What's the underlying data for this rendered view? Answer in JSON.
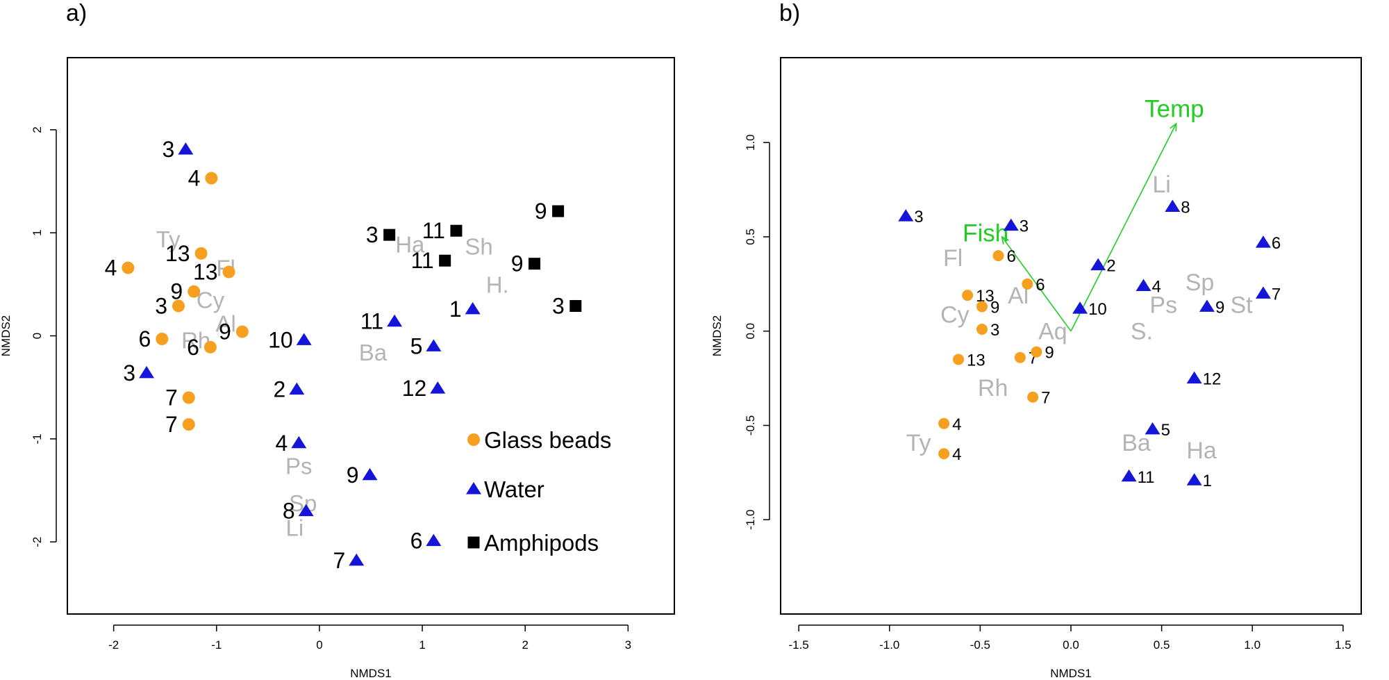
{
  "colors": {
    "glass_beads": "#f7a01f",
    "water": "#1515d9",
    "amphipods": "#000000",
    "species": "#b4b4b4",
    "vector": "#22cc22"
  },
  "chart_data": [
    {
      "type": "scatter",
      "panel_label": "a)",
      "xlabel": "NMDS1",
      "ylabel": "NMDS2",
      "xlim": [
        -2.45,
        3.45
      ],
      "ylim": [
        -2.7,
        2.7
      ],
      "xticks": [
        -2,
        -1,
        0,
        1,
        2,
        3
      ],
      "yticks": [
        -2,
        -1,
        0,
        1,
        2
      ],
      "legend": {
        "position": "bottom-right",
        "entries": [
          {
            "label": "Glass beads",
            "series": "glass_beads"
          },
          {
            "label": "Water",
            "series": "water"
          },
          {
            "label": "Amphipods",
            "series": "amphipods"
          }
        ]
      },
      "series": [
        {
          "name": "Glass beads",
          "key": "glass_beads",
          "marker": "circle",
          "points": [
            {
              "x": -1.05,
              "y": 1.53,
              "label": "4"
            },
            {
              "x": -1.86,
              "y": 0.66,
              "label": "4"
            },
            {
              "x": -1.15,
              "y": 0.8,
              "label": "13"
            },
            {
              "x": -0.88,
              "y": 0.62,
              "label": "13"
            },
            {
              "x": -1.22,
              "y": 0.43,
              "label": "9"
            },
            {
              "x": -1.37,
              "y": 0.29,
              "label": "3"
            },
            {
              "x": -0.75,
              "y": 0.04,
              "label": "9"
            },
            {
              "x": -1.53,
              "y": -0.03,
              "label": "6"
            },
            {
              "x": -1.06,
              "y": -0.11,
              "label": "6"
            },
            {
              "x": -1.27,
              "y": -0.6,
              "label": "7"
            },
            {
              "x": -1.27,
              "y": -0.86,
              "label": "7"
            }
          ]
        },
        {
          "name": "Water",
          "key": "water",
          "marker": "triangle",
          "points": [
            {
              "x": -1.3,
              "y": 1.81,
              "label": "3"
            },
            {
              "x": -1.68,
              "y": -0.36,
              "label": "3"
            },
            {
              "x": -0.15,
              "y": -0.04,
              "label": "10"
            },
            {
              "x": -0.22,
              "y": -0.52,
              "label": "2"
            },
            {
              "x": -0.2,
              "y": -1.04,
              "label": "4"
            },
            {
              "x": 0.49,
              "y": -1.35,
              "label": "9"
            },
            {
              "x": -0.13,
              "y": -1.7,
              "label": "8"
            },
            {
              "x": 0.36,
              "y": -2.18,
              "label": "7"
            },
            {
              "x": 0.73,
              "y": 0.14,
              "label": "11"
            },
            {
              "x": 1.11,
              "y": -0.1,
              "label": "5"
            },
            {
              "x": 1.15,
              "y": -0.51,
              "label": "12"
            },
            {
              "x": 1.49,
              "y": 0.26,
              "label": "1"
            },
            {
              "x": 1.11,
              "y": -1.99,
              "label": "6"
            }
          ]
        },
        {
          "name": "Amphipods",
          "key": "amphipods",
          "marker": "square",
          "points": [
            {
              "x": 0.68,
              "y": 0.98,
              "label": "3"
            },
            {
              "x": 1.33,
              "y": 1.02,
              "label": "11"
            },
            {
              "x": 1.22,
              "y": 0.73,
              "label": "11"
            },
            {
              "x": 2.32,
              "y": 1.21,
              "label": "9"
            },
            {
              "x": 2.09,
              "y": 0.7,
              "label": "9"
            },
            {
              "x": 2.49,
              "y": 0.29,
              "label": "3"
            }
          ]
        }
      ],
      "species": [
        {
          "x": -1.47,
          "y": 0.94,
          "label": "Ty"
        },
        {
          "x": -0.91,
          "y": 0.66,
          "label": "Fl"
        },
        {
          "x": -1.06,
          "y": 0.35,
          "label": "Cy"
        },
        {
          "x": -0.91,
          "y": 0.12,
          "label": "Al"
        },
        {
          "x": -1.2,
          "y": -0.04,
          "label": "Rh"
        },
        {
          "x": 0.88,
          "y": 0.89,
          "label": "Ha"
        },
        {
          "x": 1.55,
          "y": 0.87,
          "label": "Sh"
        },
        {
          "x": 1.73,
          "y": 0.5,
          "label": "H."
        },
        {
          "x": 0.52,
          "y": -0.16,
          "label": "Ba"
        },
        {
          "x": -0.2,
          "y": -1.26,
          "label": "Ps"
        },
        {
          "x": -0.16,
          "y": -1.62,
          "label": "Sp"
        },
        {
          "x": -0.24,
          "y": -1.86,
          "label": "Li"
        }
      ]
    },
    {
      "type": "scatter",
      "panel_label": "b)",
      "xlabel": "NMDS1",
      "ylabel": "NMDS2",
      "xlim": [
        -1.6,
        1.6
      ],
      "ylim": [
        -1.5,
        1.45
      ],
      "xticks": [
        -1.5,
        -1.0,
        -0.5,
        0.0,
        0.5,
        1.0,
        1.5
      ],
      "yticks": [
        -1.0,
        -0.5,
        0.0,
        0.5,
        1.0
      ],
      "series": [
        {
          "name": "Glass beads",
          "key": "glass_beads",
          "marker": "circle",
          "points": [
            {
              "x": -0.4,
              "y": 0.4,
              "label": "6"
            },
            {
              "x": -0.24,
              "y": 0.25,
              "label": "6"
            },
            {
              "x": -0.57,
              "y": 0.19,
              "label": "13"
            },
            {
              "x": -0.49,
              "y": 0.13,
              "label": "9"
            },
            {
              "x": -0.49,
              "y": 0.01,
              "label": "3"
            },
            {
              "x": -0.62,
              "y": -0.15,
              "label": "13"
            },
            {
              "x": -0.28,
              "y": -0.14,
              "label": "7"
            },
            {
              "x": -0.19,
              "y": -0.11,
              "label": "9"
            },
            {
              "x": -0.21,
              "y": -0.35,
              "label": "7"
            },
            {
              "x": -0.7,
              "y": -0.49,
              "label": "4"
            },
            {
              "x": -0.7,
              "y": -0.65,
              "label": "4"
            }
          ]
        },
        {
          "name": "Water",
          "key": "water",
          "marker": "triangle",
          "points": [
            {
              "x": -0.91,
              "y": 0.61,
              "label": "3"
            },
            {
              "x": -0.33,
              "y": 0.56,
              "label": "3"
            },
            {
              "x": 0.15,
              "y": 0.35,
              "label": "2"
            },
            {
              "x": 0.05,
              "y": 0.12,
              "label": "10"
            },
            {
              "x": 0.56,
              "y": 0.66,
              "label": "8"
            },
            {
              "x": 0.4,
              "y": 0.24,
              "label": "4"
            },
            {
              "x": 1.06,
              "y": 0.47,
              "label": "6"
            },
            {
              "x": 0.75,
              "y": 0.13,
              "label": "9"
            },
            {
              "x": 1.06,
              "y": 0.2,
              "label": "7"
            },
            {
              "x": 0.68,
              "y": -0.25,
              "label": "12"
            },
            {
              "x": 0.45,
              "y": -0.52,
              "label": "5"
            },
            {
              "x": 0.32,
              "y": -0.77,
              "label": "11"
            },
            {
              "x": 0.68,
              "y": -0.79,
              "label": "1"
            }
          ]
        }
      ],
      "species": [
        {
          "x": -0.65,
          "y": 0.39,
          "label": "Fl"
        },
        {
          "x": -0.29,
          "y": 0.19,
          "label": "Al"
        },
        {
          "x": -0.64,
          "y": 0.09,
          "label": "Cy"
        },
        {
          "x": -0.1,
          "y": 0.0,
          "label": "Aq"
        },
        {
          "x": -0.43,
          "y": -0.3,
          "label": "Rh"
        },
        {
          "x": -0.84,
          "y": -0.59,
          "label": "Ty"
        },
        {
          "x": 0.5,
          "y": 0.78,
          "label": "Li"
        },
        {
          "x": 0.71,
          "y": 0.26,
          "label": "Sp"
        },
        {
          "x": 0.51,
          "y": 0.14,
          "label": "Ps"
        },
        {
          "x": 0.39,
          "y": 0.0,
          "label": "S."
        },
        {
          "x": 0.94,
          "y": 0.14,
          "label": "St"
        },
        {
          "x": 0.36,
          "y": -0.59,
          "label": "Ba"
        },
        {
          "x": 0.72,
          "y": -0.63,
          "label": "Ha"
        }
      ],
      "vectors": [
        {
          "x": 0.58,
          "y": 1.1,
          "label": "Temp",
          "label_x": 0.57,
          "label_y": 1.18
        },
        {
          "x": -0.38,
          "y": 0.5,
          "label": "Fish",
          "label_x": -0.47,
          "label_y": 0.52
        }
      ]
    }
  ]
}
